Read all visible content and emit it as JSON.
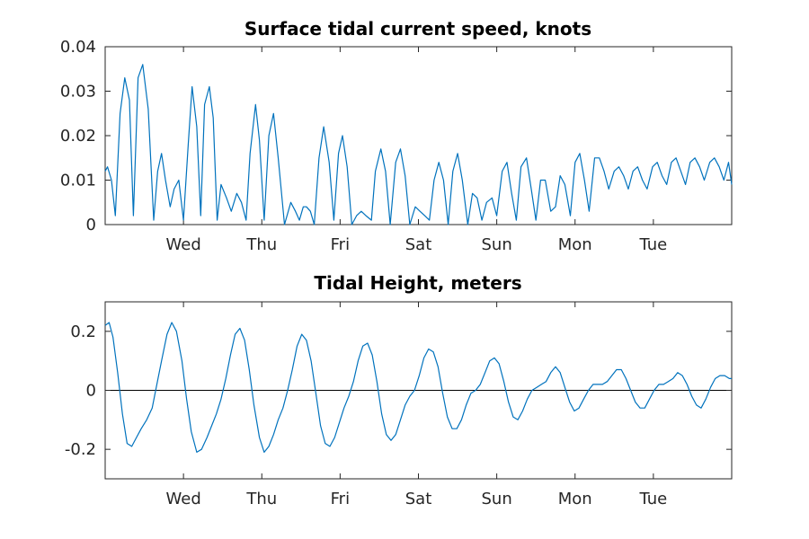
{
  "chart_data": [
    {
      "type": "line",
      "title": "Surface tidal current speed, knots",
      "xlabel": "",
      "ylabel": "",
      "x_tick_labels": [
        "Wed",
        "Thu",
        "Fri",
        "Sat",
        "Sun",
        "Mon",
        "Tue"
      ],
      "xlim_days": [
        0,
        8.0
      ],
      "x_tick_days": [
        1,
        2,
        3,
        4,
        5,
        6,
        7
      ],
      "ylim": [
        0,
        0.04
      ],
      "y_ticks": [
        0,
        0.01,
        0.02,
        0.03,
        0.04
      ],
      "y_tick_labels": [
        "0",
        "0.01",
        "0.02",
        "0.03",
        "0.04"
      ],
      "grid": false,
      "color": "#0072BD",
      "series": [
        {
          "x": [
            0.0,
            0.03,
            0.08,
            0.13,
            0.19,
            0.25,
            0.31,
            0.36,
            0.42,
            0.48,
            0.55,
            0.62,
            0.67,
            0.72,
            0.77,
            0.83,
            0.88,
            0.94,
            1.0,
            1.06,
            1.11,
            1.17,
            1.22,
            1.27,
            1.33,
            1.38,
            1.43,
            1.48,
            1.55,
            1.61,
            1.68,
            1.74,
            1.8,
            1.85,
            1.92,
            1.97,
            2.03,
            2.09,
            2.15,
            2.21,
            2.29,
            2.37,
            2.43,
            2.48,
            2.53,
            2.57,
            2.62,
            2.67,
            2.73,
            2.79,
            2.86,
            2.92,
            2.98,
            3.03,
            3.09,
            3.15,
            3.21,
            3.27,
            3.33,
            3.4,
            3.45,
            3.52,
            3.58,
            3.64,
            3.71,
            3.77,
            3.83,
            3.89,
            3.96,
            4.02,
            4.08,
            4.14,
            4.2,
            4.26,
            4.32,
            4.38,
            4.44,
            4.5,
            4.56,
            4.63,
            4.69,
            4.75,
            4.81,
            4.87,
            4.94,
            5.0,
            5.07,
            5.13,
            5.19,
            5.25,
            5.31,
            5.38,
            5.44,
            5.5,
            5.56,
            5.62,
            5.69,
            5.75,
            5.81,
            5.87,
            5.94,
            6.0,
            6.06,
            6.12,
            6.18,
            6.25,
            6.31,
            6.37,
            6.43,
            6.5,
            6.56,
            6.62,
            6.68,
            6.74,
            6.8,
            6.86,
            6.92,
            6.99,
            7.05,
            7.11,
            7.17,
            7.23,
            7.29,
            7.35,
            7.41,
            7.47,
            7.53,
            7.59,
            7.65,
            7.72,
            7.78,
            7.84,
            7.9,
            7.96,
            8.0
          ],
          "y": [
            0.012,
            0.013,
            0.01,
            0.002,
            0.025,
            0.033,
            0.028,
            0.002,
            0.033,
            0.036,
            0.026,
            0.001,
            0.012,
            0.016,
            0.01,
            0.004,
            0.008,
            0.01,
            0.001,
            0.018,
            0.031,
            0.022,
            0.002,
            0.027,
            0.031,
            0.024,
            0.001,
            0.009,
            0.006,
            0.003,
            0.007,
            0.005,
            0.001,
            0.016,
            0.027,
            0.019,
            0.001,
            0.02,
            0.025,
            0.015,
            0.0,
            0.005,
            0.003,
            0.001,
            0.004,
            0.004,
            0.003,
            0.0,
            0.015,
            0.022,
            0.014,
            0.001,
            0.016,
            0.02,
            0.013,
            0.0,
            0.002,
            0.003,
            0.002,
            0.001,
            0.012,
            0.017,
            0.012,
            0.0,
            0.014,
            0.017,
            0.011,
            0.0,
            0.004,
            0.003,
            0.002,
            0.001,
            0.01,
            0.014,
            0.01,
            0.0,
            0.012,
            0.016,
            0.01,
            0.0,
            0.007,
            0.006,
            0.001,
            0.005,
            0.006,
            0.002,
            0.012,
            0.014,
            0.007,
            0.001,
            0.013,
            0.015,
            0.008,
            0.001,
            0.01,
            0.01,
            0.003,
            0.004,
            0.011,
            0.009,
            0.002,
            0.014,
            0.016,
            0.01,
            0.003,
            0.015,
            0.015,
            0.012,
            0.008,
            0.012,
            0.013,
            0.011,
            0.008,
            0.012,
            0.013,
            0.01,
            0.008,
            0.013,
            0.014,
            0.011,
            0.009,
            0.014,
            0.015,
            0.012,
            0.009,
            0.014,
            0.015,
            0.013,
            0.01,
            0.014,
            0.015,
            0.013,
            0.01,
            0.014,
            0.009
          ]
        }
      ]
    },
    {
      "type": "line",
      "title": "Tidal Height, meters",
      "xlabel": "",
      "ylabel": "",
      "x_tick_labels": [
        "Wed",
        "Thu",
        "Fri",
        "Sat",
        "Sun",
        "Mon",
        "Tue"
      ],
      "xlim_days": [
        0,
        8.0
      ],
      "x_tick_days": [
        1,
        2,
        3,
        4,
        5,
        6,
        7
      ],
      "ylim": [
        -0.3,
        0.3
      ],
      "y_ticks": [
        -0.2,
        0,
        0.2
      ],
      "y_tick_labels": [
        "-0.2",
        "0",
        "0.2"
      ],
      "zero_line": true,
      "grid": false,
      "color": "#0072BD",
      "series": [
        {
          "x": [
            0.0,
            0.05,
            0.1,
            0.16,
            0.22,
            0.28,
            0.34,
            0.4,
            0.46,
            0.53,
            0.6,
            0.66,
            0.72,
            0.79,
            0.85,
            0.91,
            0.98,
            1.04,
            1.1,
            1.17,
            1.23,
            1.3,
            1.36,
            1.42,
            1.48,
            1.54,
            1.6,
            1.66,
            1.72,
            1.78,
            1.84,
            1.9,
            1.97,
            2.03,
            2.09,
            2.15,
            2.21,
            2.27,
            2.33,
            2.39,
            2.45,
            2.51,
            2.57,
            2.63,
            2.69,
            2.75,
            2.81,
            2.87,
            2.93,
            2.99,
            3.05,
            3.11,
            3.17,
            3.23,
            3.29,
            3.35,
            3.41,
            3.47,
            3.53,
            3.59,
            3.65,
            3.71,
            3.77,
            3.83,
            3.89,
            3.95,
            4.01,
            4.07,
            4.13,
            4.19,
            4.25,
            4.31,
            4.37,
            4.43,
            4.49,
            4.55,
            4.61,
            4.67,
            4.73,
            4.79,
            4.85,
            4.91,
            4.97,
            5.03,
            5.09,
            5.15,
            5.21,
            5.27,
            5.33,
            5.39,
            5.45,
            5.51,
            5.57,
            5.63,
            5.69,
            5.75,
            5.81,
            5.87,
            5.93,
            5.99,
            6.05,
            6.11,
            6.17,
            6.23,
            6.29,
            6.35,
            6.41,
            6.47,
            6.53,
            6.59,
            6.65,
            6.71,
            6.77,
            6.83,
            6.89,
            6.95,
            7.01,
            7.07,
            7.13,
            7.19,
            7.25,
            7.31,
            7.37,
            7.43,
            7.49,
            7.55,
            7.61,
            7.67,
            7.73,
            7.79,
            7.85,
            7.91,
            7.97,
            8.0
          ],
          "y": [
            0.22,
            0.23,
            0.18,
            0.06,
            -0.08,
            -0.18,
            -0.19,
            -0.16,
            -0.13,
            -0.1,
            -0.06,
            0.02,
            0.1,
            0.19,
            0.23,
            0.2,
            0.1,
            -0.03,
            -0.14,
            -0.21,
            -0.2,
            -0.16,
            -0.12,
            -0.08,
            -0.03,
            0.04,
            0.12,
            0.19,
            0.21,
            0.17,
            0.07,
            -0.05,
            -0.16,
            -0.21,
            -0.19,
            -0.15,
            -0.1,
            -0.06,
            0.0,
            0.07,
            0.15,
            0.19,
            0.17,
            0.1,
            -0.01,
            -0.12,
            -0.18,
            -0.19,
            -0.16,
            -0.11,
            -0.06,
            -0.02,
            0.03,
            0.1,
            0.15,
            0.16,
            0.12,
            0.03,
            -0.08,
            -0.15,
            -0.17,
            -0.15,
            -0.1,
            -0.05,
            -0.02,
            0.0,
            0.05,
            0.11,
            0.14,
            0.13,
            0.08,
            -0.01,
            -0.09,
            -0.13,
            -0.13,
            -0.1,
            -0.05,
            -0.01,
            0.0,
            0.02,
            0.06,
            0.1,
            0.11,
            0.09,
            0.03,
            -0.04,
            -0.09,
            -0.1,
            -0.07,
            -0.03,
            0.0,
            0.01,
            0.02,
            0.03,
            0.06,
            0.08,
            0.06,
            0.01,
            -0.04,
            -0.07,
            -0.06,
            -0.03,
            0.0,
            0.02,
            0.02,
            0.02,
            0.03,
            0.05,
            0.07,
            0.07,
            0.04,
            0.0,
            -0.04,
            -0.06,
            -0.06,
            -0.03,
            0.0,
            0.02,
            0.02,
            0.03,
            0.04,
            0.06,
            0.05,
            0.02,
            -0.02,
            -0.05,
            -0.06,
            -0.03,
            0.01,
            0.04,
            0.05,
            0.05,
            0.04,
            0.04
          ]
        }
      ]
    }
  ]
}
